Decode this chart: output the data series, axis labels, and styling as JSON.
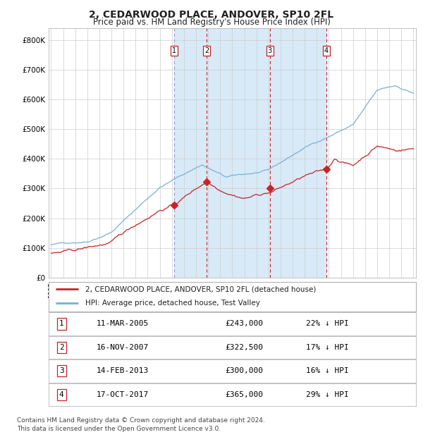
{
  "title": "2, CEDARWOOD PLACE, ANDOVER, SP10 2FL",
  "subtitle": "Price paid vs. HM Land Registry's House Price Index (HPI)",
  "title_color": "#222222",
  "background_color": "#ffffff",
  "plot_bg_color": "#ffffff",
  "grid_color": "#cccccc",
  "hpi_color": "#7ab0d4",
  "price_color": "#cc2222",
  "highlight_bg": "#d8eaf8",
  "dashed_line_color": "#9999bb",
  "red_dashed_color": "#cc2222",
  "ylim": [
    0,
    840000
  ],
  "yticks": [
    0,
    100000,
    200000,
    300000,
    400000,
    500000,
    600000,
    700000,
    800000
  ],
  "ytick_labels": [
    "£0",
    "£100K",
    "£200K",
    "£300K",
    "£400K",
    "£500K",
    "£600K",
    "£700K",
    "£800K"
  ],
  "year_start": 1995,
  "year_end": 2025,
  "purchases": [
    {
      "label": "1",
      "date": "11-MAR-2005",
      "year": 2005.19,
      "price": 243000,
      "pct": "22%",
      "dir": "↓"
    },
    {
      "label": "2",
      "date": "16-NOV-2007",
      "year": 2007.87,
      "price": 322500,
      "pct": "17%",
      "dir": "↓"
    },
    {
      "label": "3",
      "date": "14-FEB-2013",
      "year": 2013.12,
      "price": 300000,
      "pct": "16%",
      "dir": "↓"
    },
    {
      "label": "4",
      "date": "17-OCT-2017",
      "year": 2017.79,
      "price": 365000,
      "pct": "29%",
      "dir": "↓"
    }
  ],
  "legend_line1": "2, CEDARWOOD PLACE, ANDOVER, SP10 2FL (detached house)",
  "legend_line2": "HPI: Average price, detached house, Test Valley",
  "footer1": "Contains HM Land Registry data © Crown copyright and database right 2024.",
  "footer2": "This data is licensed under the Open Government Licence v3.0."
}
